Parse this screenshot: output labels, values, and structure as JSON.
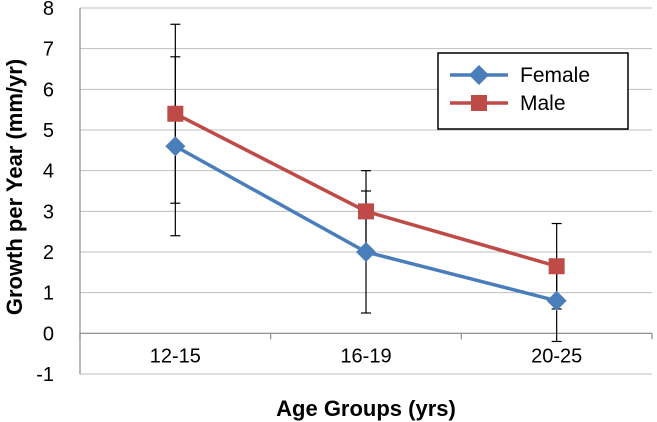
{
  "chart_data": {
    "type": "line",
    "categories": [
      "12-15",
      "16-19",
      "20-25"
    ],
    "series": [
      {
        "name": "Female",
        "values": [
          4.6,
          2.0,
          0.8
        ],
        "error_low": [
          2.4,
          0.5,
          -0.2
        ],
        "error_high": [
          6.8,
          3.5,
          1.8
        ],
        "color": "#4a7ebb",
        "marker": "diamond"
      },
      {
        "name": "Male",
        "values": [
          5.4,
          3.0,
          1.65
        ],
        "error_low": [
          3.2,
          2.0,
          0.6
        ],
        "error_high": [
          7.6,
          4.0,
          2.7
        ],
        "color": "#be4b48",
        "marker": "square"
      }
    ],
    "title": "",
    "xlabel": "Age Groups (yrs)",
    "ylabel": "Growth per Year (mm/yr)",
    "ylim": [
      -1,
      8
    ],
    "yticks": [
      "-1",
      "0",
      "1",
      "2",
      "3",
      "4",
      "5",
      "6",
      "7",
      "8"
    ],
    "grid": true,
    "legend_position": "top-right"
  }
}
